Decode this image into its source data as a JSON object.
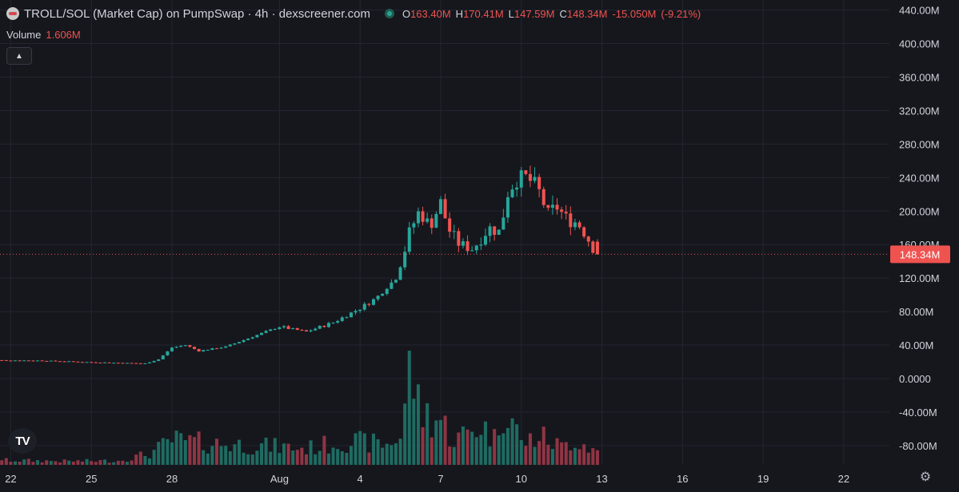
{
  "header": {
    "title": "TROLL/SOL (Market Cap) on PumpSwap · 4h · dexscreener.com",
    "ohlc": [
      {
        "k": "O",
        "v": "163.40M"
      },
      {
        "k": "H",
        "v": "170.41M"
      },
      {
        "k": "L",
        "v": "147.59M"
      },
      {
        "k": "C",
        "v": "148.34M"
      },
      {
        "k": "",
        "v": "-15.050M"
      },
      {
        "k": "",
        "v": "(-9.21%)"
      }
    ],
    "volume_label": "Volume",
    "volume_value": "1.606M",
    "collapse_icon": "chevron-up-icon",
    "brand": "TV"
  },
  "colors": {
    "up": "#26a69a",
    "down": "#ef5350",
    "up_volume": "#1f6b62",
    "down_volume": "#8f3544",
    "grid": "#232631",
    "price_line": "#ef5350",
    "background": "#16171d"
  },
  "chart_data": {
    "type": "candlestick",
    "title": "TROLL/SOL (Market Cap) on PumpSwap · 4h · dexscreener.com",
    "interval": "4h",
    "x_axis": {
      "ticks": [
        "22",
        "25",
        "28",
        "Aug",
        "4",
        "7",
        "10",
        "13",
        "16",
        "19",
        "22"
      ],
      "tick_days": [
        -10,
        -7,
        -4,
        0,
        3,
        6,
        9,
        12,
        15,
        18,
        21
      ],
      "range_days": [
        -10.4,
        22.7
      ]
    },
    "y_axis": {
      "unit": "M",
      "ticks": [
        "440.00M",
        "400.00M",
        "360.00M",
        "320.00M",
        "280.00M",
        "240.00M",
        "200.00M",
        "160.00M",
        "120.00M",
        "80.00M",
        "40.00M",
        "0.0000",
        "-40.00M",
        "-80.00M"
      ],
      "tick_values": [
        440,
        400,
        360,
        320,
        280,
        240,
        200,
        160,
        120,
        80,
        40,
        0,
        -40,
        -80
      ],
      "range": [
        -103,
        452
      ]
    },
    "last_price": {
      "value": 148.34,
      "label": "148.34M"
    },
    "grid": true,
    "legend": "top-left",
    "close_series": [
      {
        "day": -11.0,
        "close": 22
      },
      {
        "day": -9.0,
        "close": 21.5
      },
      {
        "day": -7.0,
        "close": 19.5
      },
      {
        "day": -5.0,
        "close": 18
      },
      {
        "day": -4.5,
        "close": 23
      },
      {
        "day": -4.0,
        "close": 37
      },
      {
        "day": -3.5,
        "close": 40
      },
      {
        "day": -3.0,
        "close": 33
      },
      {
        "day": -2.0,
        "close": 38
      },
      {
        "day": -1.0,
        "close": 50
      },
      {
        "day": 0.0,
        "close": 62
      },
      {
        "day": 1.0,
        "close": 56
      },
      {
        "day": 2.0,
        "close": 67
      },
      {
        "day": 3.0,
        "close": 84
      },
      {
        "day": 3.6,
        "close": 96
      },
      {
        "day": 4.0,
        "close": 110
      },
      {
        "day": 4.3,
        "close": 118
      },
      {
        "day": 4.6,
        "close": 145
      },
      {
        "day": 4.8,
        "close": 172
      },
      {
        "day": 5.2,
        "close": 200
      },
      {
        "day": 5.6,
        "close": 182
      },
      {
        "day": 6.0,
        "close": 210
      },
      {
        "day": 6.3,
        "close": 178
      },
      {
        "day": 6.7,
        "close": 160
      },
      {
        "day": 7.2,
        "close": 155
      },
      {
        "day": 7.8,
        "close": 180
      },
      {
        "day": 8.2,
        "close": 175
      },
      {
        "day": 8.5,
        "close": 222
      },
      {
        "day": 8.8,
        "close": 238
      },
      {
        "day": 9.2,
        "close": 240
      },
      {
        "day": 9.6,
        "close": 228
      },
      {
        "day": 10.0,
        "close": 196
      },
      {
        "day": 10.3,
        "close": 206
      },
      {
        "day": 10.7,
        "close": 190
      },
      {
        "day": 11.1,
        "close": 186
      },
      {
        "day": 11.4,
        "close": 172
      },
      {
        "day": 11.6,
        "close": 160
      },
      {
        "day": 11.8,
        "close": 148.34
      }
    ],
    "volume_series": [
      {
        "day": -11.0,
        "volume": 0.6
      },
      {
        "day": -8.0,
        "volume": 0.45
      },
      {
        "day": -6.0,
        "volume": 0.5
      },
      {
        "day": -4.8,
        "volume": 1.4
      },
      {
        "day": -4.0,
        "volume": 3.0
      },
      {
        "day": -2.5,
        "volume": 2.6
      },
      {
        "day": -1.0,
        "volume": 2.4
      },
      {
        "day": 1.0,
        "volume": 2.0
      },
      {
        "day": 2.5,
        "volume": 2.9
      },
      {
        "day": 4.0,
        "volume": 2.5
      },
      {
        "day": 4.5,
        "volume": 3.5
      },
      {
        "day": 4.9,
        "volume": 12.8
      },
      {
        "day": 5.2,
        "volume": 6.5
      },
      {
        "day": 6.0,
        "volume": 5.5
      },
      {
        "day": 6.5,
        "volume": 3.0
      },
      {
        "day": 7.5,
        "volume": 4.9
      },
      {
        "day": 8.0,
        "volume": 3.2
      },
      {
        "day": 8.4,
        "volume": 8.2
      },
      {
        "day": 9.0,
        "volume": 2.6
      },
      {
        "day": 9.7,
        "volume": 3.5
      },
      {
        "day": 10.5,
        "volume": 2.2
      },
      {
        "day": 11.0,
        "volume": 3.2
      },
      {
        "day": 11.8,
        "volume": 1.606
      }
    ]
  }
}
